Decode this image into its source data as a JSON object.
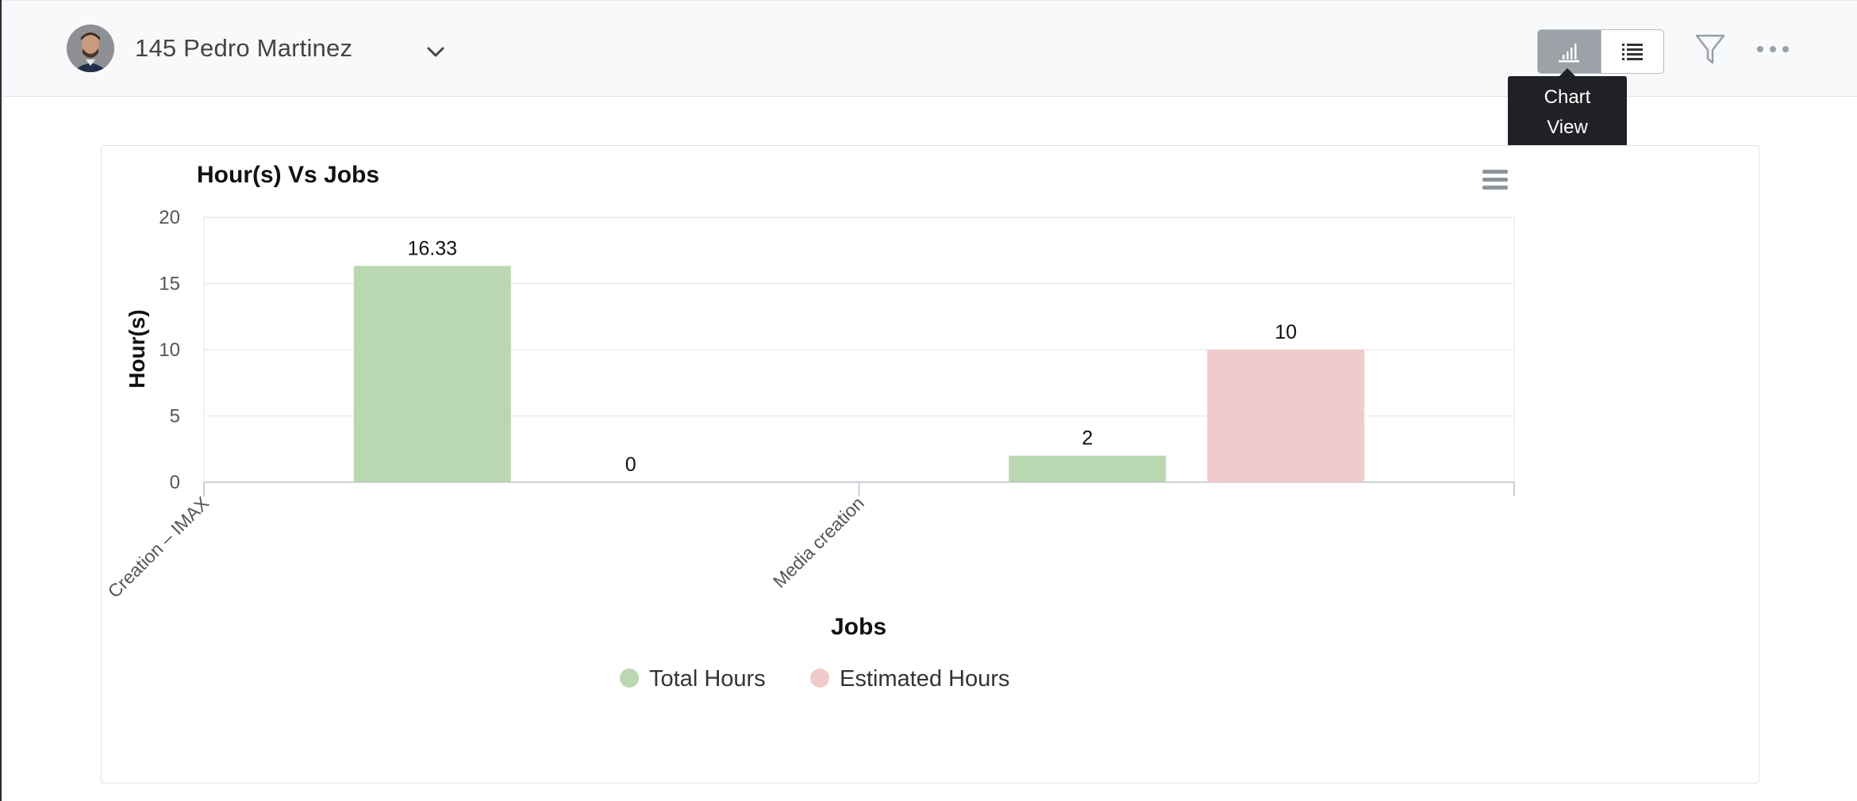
{
  "header": {
    "user_name": "145 Pedro Martinez",
    "avatar_alt": "user-avatar",
    "tooltip_line1": "Chart",
    "tooltip_line2": "View",
    "view_buttons": [
      {
        "name": "chart-view",
        "icon": "bar-chart-icon",
        "active": true
      },
      {
        "name": "list-view",
        "icon": "list-icon",
        "active": false
      }
    ],
    "filter_icon": "filter-icon",
    "more_icon": "more-horizontal-icon"
  },
  "chart_data": {
    "type": "bar",
    "title": "Hour(s) Vs Jobs",
    "xlabel": "Jobs",
    "ylabel": "Hour(s)",
    "ylim": [
      0,
      20
    ],
    "yticks": [
      "0",
      "5",
      "10",
      "15",
      "20"
    ],
    "categories": [
      "Creation – IMAX",
      "Media creation"
    ],
    "series": [
      {
        "name": "Total Hours",
        "values": [
          16.33,
          2
        ],
        "labels": [
          "16.33",
          "2"
        ],
        "color": "#b9d7b0"
      },
      {
        "name": "Estimated Hours",
        "values": [
          0,
          10
        ],
        "labels": [
          "0",
          "10"
        ],
        "color": "#f1cbcb"
      }
    ],
    "grid": true,
    "legend_position": "bottom-center"
  },
  "colors": {
    "total_hours": "#b9d7b0",
    "estimated_hours": "#f1cbcb",
    "active_toggle": "#9da2a8",
    "tooltip_bg": "#1f2124"
  }
}
